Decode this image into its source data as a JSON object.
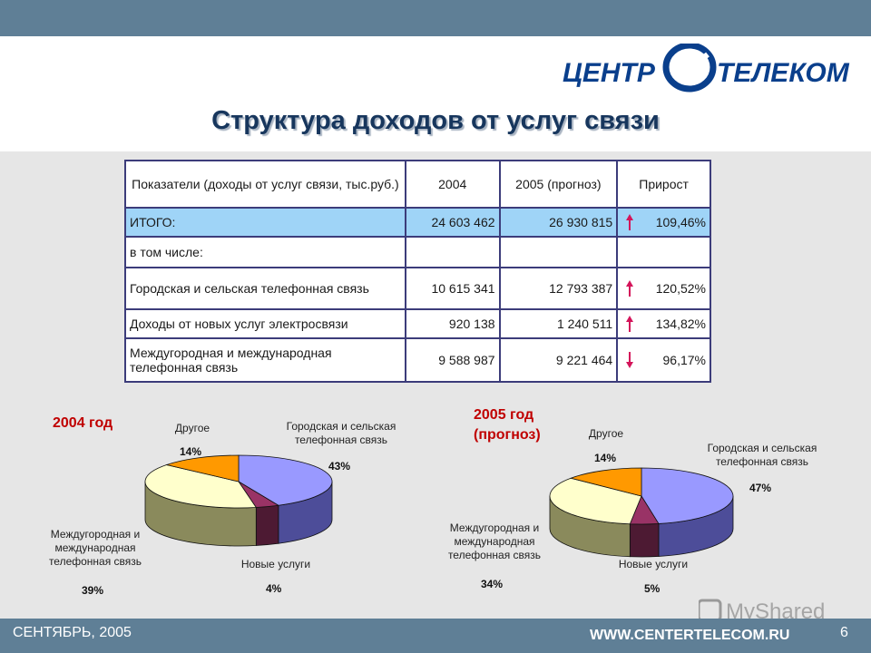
{
  "logo": {
    "left": "ЦЕНТР",
    "right": "ТЕЛЕКОМ"
  },
  "title": "Структура доходов от услуг связи",
  "table": {
    "header": {
      "indicator": "Показатели (доходы от услуг связи, тыс.руб.)",
      "col2004": "2004",
      "col2005": "2005 (прогноз)",
      "growth": "Прирост"
    },
    "total": {
      "label": "ИТОГО:",
      "v2004": "24 603 462",
      "v2005": "26 930 815",
      "growth": "109,46%",
      "trend": "up"
    },
    "including": "в том числе:",
    "rows": [
      {
        "label": "Городская и сельская телефонная связь",
        "v2004": "10 615 341",
        "v2005": "12 793 387",
        "growth": "120,52%",
        "trend": "up"
      },
      {
        "label": "Доходы от новых услуг электросвязи",
        "v2004": "920 138",
        "v2005": "1 240 511",
        "growth": "134,82%",
        "trend": "up"
      },
      {
        "label": "Междугородная и международная телефонная связь",
        "v2004": "9 588 987",
        "v2005": "9 221 464",
        "growth": "96,17%",
        "trend": "down"
      }
    ]
  },
  "chart_data": [
    {
      "type": "pie",
      "title": "2004 год",
      "categories": [
        "Городская и сельская телефонная связь",
        "Новые услуги",
        "Междугородная и международная телефонная связь",
        "Другое"
      ],
      "values": [
        43,
        4,
        39,
        14
      ],
      "labels": [
        "43%",
        "4%",
        "39%",
        "14%"
      ]
    },
    {
      "type": "pie",
      "title": "2005 год (прогноз)",
      "categories": [
        "Городская и сельская телефонная связь",
        "Новые услуги",
        "Междугородная и международная телефонная связь",
        "Другое"
      ],
      "values": [
        47,
        5,
        34,
        14
      ],
      "labels": [
        "47%",
        "5%",
        "34%",
        "14%"
      ]
    }
  ],
  "slice_colors": {
    "urban": "#9999ff",
    "new": "#993366",
    "longdist": "#ffffcc",
    "other": "#ff9900"
  },
  "slice_side_colors": {
    "urban": "#4d4d99",
    "new": "#4d1a33",
    "longdist": "#8a8a5c",
    "other": "#8a5200"
  },
  "chart1_labels": {
    "title": "2004 год",
    "other": "Другое",
    "urban_line1": "Городская и сельская",
    "urban_line2": "телефонная связь",
    "longdist_line1": "Междугородная и",
    "longdist_line2": "международная",
    "longdist_line3": "телефонная связь",
    "new": "Новые услуги"
  },
  "chart2_labels": {
    "title_line1": "2005 год",
    "title_line2": "(прогноз)",
    "other": "Другое",
    "urban_line1": "Городская и сельская",
    "urban_line2": "телефонная связь",
    "longdist_line1": "Междугородная и",
    "longdist_line2": "международная",
    "longdist_line3": "телефонная связь",
    "new": "Новые услуги"
  },
  "footer": {
    "date": "СЕНТЯБРЬ, 2005",
    "url": "WWW.CENTERTELECOM.RU",
    "page": "6"
  },
  "watermark": "MyShared"
}
